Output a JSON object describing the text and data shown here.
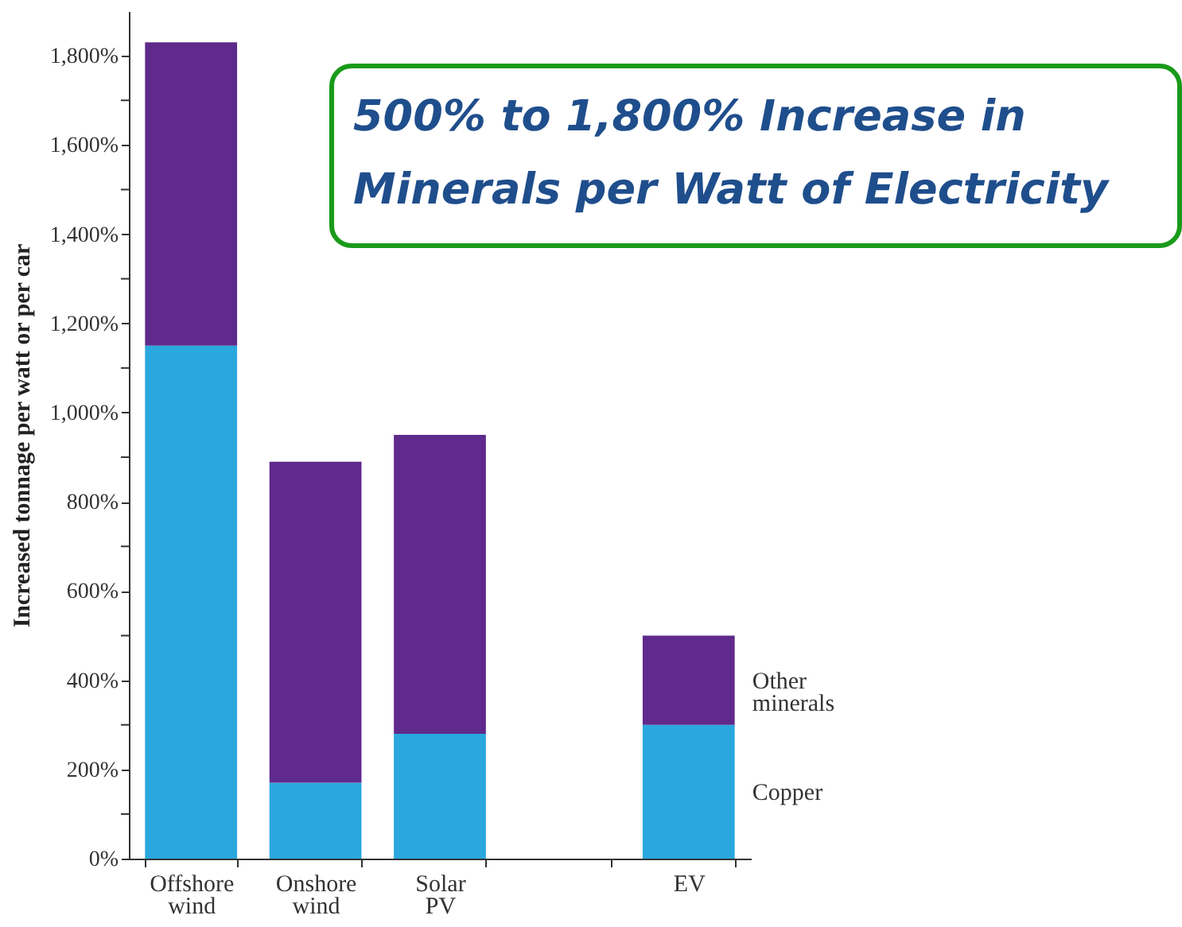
{
  "chart_data": {
    "type": "bar",
    "stacked": true,
    "title": "500% to 1,800% Increase in Minerals per Watt of Electricity",
    "ylabel": "Increased tonnage per watt or per car",
    "categories": [
      "Offshore wind",
      "Onshore wind",
      "Solar PV",
      null,
      "EV"
    ],
    "series": [
      {
        "name": "Copper",
        "color": "#2aa7df",
        "values": [
          1150,
          170,
          280,
          null,
          300
        ]
      },
      {
        "name": "Other minerals",
        "color": "#5f2a8b",
        "values": [
          680,
          720,
          670,
          null,
          200
        ]
      }
    ],
    "ylim": [
      0,
      1900
    ],
    "yticks": [
      {
        "value": 0,
        "label": "0%"
      },
      {
        "value": 100,
        "label": null
      },
      {
        "value": 200,
        "label": "200%"
      },
      {
        "value": 300,
        "label": null
      },
      {
        "value": 400,
        "label": "400%"
      },
      {
        "value": 500,
        "label": null
      },
      {
        "value": 600,
        "label": "600%"
      },
      {
        "value": 700,
        "label": null
      },
      {
        "value": 800,
        "label": "800%"
      },
      {
        "value": 900,
        "label": null
      },
      {
        "value": 1000,
        "label": "1,000%"
      },
      {
        "value": 1100,
        "label": null
      },
      {
        "value": 1200,
        "label": "1,200%"
      },
      {
        "value": 1300,
        "label": null
      },
      {
        "value": 1400,
        "label": "1,400%"
      },
      {
        "value": 1500,
        "label": null
      },
      {
        "value": 1600,
        "label": "1,600%"
      },
      {
        "value": 1700,
        "label": null
      },
      {
        "value": 1800,
        "label": "1,800%"
      }
    ],
    "grid": false
  }
}
